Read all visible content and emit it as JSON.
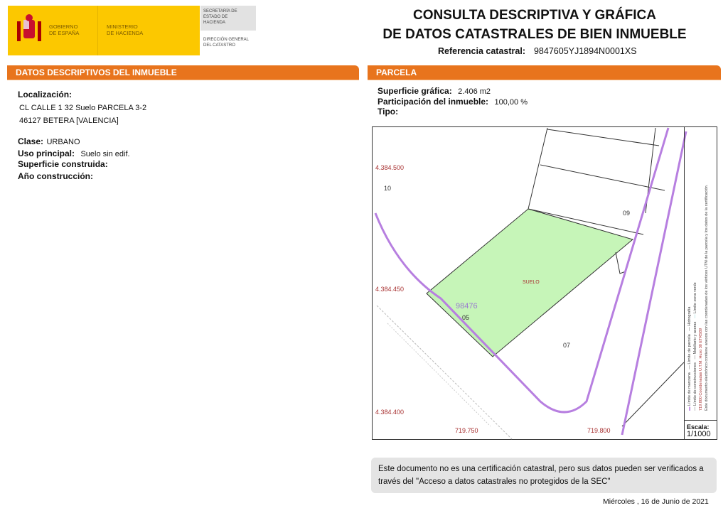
{
  "header": {
    "gov_line1": "GOBIERNO",
    "gov_line2": "DE ESPAÑA",
    "ministry_line1": "MINISTERIO",
    "ministry_line2": "DE HACIENDA",
    "secretaria": "SECRETARÍA DE ESTADO DE HACIENDA",
    "direccion": "DIRECCIÓN GENERAL DEL CATASTRO",
    "title_line1": "CONSULTA DESCRIPTIVA Y GRÁFICA",
    "title_line2": "DE DATOS CATASTRALES DE BIEN INMUEBLE",
    "ref_label": "Referencia catastral:",
    "ref_value": "9847605YJ1894N0001XS"
  },
  "left": {
    "section_title": "DATOS DESCRIPTIVOS DEL INMUEBLE",
    "localizacion_label": "Localización:",
    "address_line1": "CL CALLE 1 32 Suelo PARCELA 3-2",
    "address_line2": "46127 BETERA [VALENCIA]",
    "clase_label": "Clase:",
    "clase_value": "URBANO",
    "uso_label": "Uso principal:",
    "uso_value": "Suelo sin edif.",
    "superficie_label": "Superficie construida:",
    "anio_label": "Año construcción:"
  },
  "right": {
    "section_title": "PARCELA",
    "superficie_label": "Superficie gráfica:",
    "superficie_value": "2.406 m2",
    "participacion_label": "Participación del inmueble:",
    "participacion_value": "100,00 %",
    "tipo_label": "Tipo:"
  },
  "map": {
    "y_ticks": [
      "4.384.500",
      "4.384.450",
      "4.384.400"
    ],
    "x_ticks": [
      "719.750",
      "719.800"
    ],
    "labels": {
      "p10": "10",
      "p09": "09",
      "suelo": "SUELO",
      "manzana": "98476",
      "p05": "05",
      "p07": "07"
    },
    "colors": {
      "parcel_fill": "#c6f5b8",
      "manzana": "#b77fe0",
      "coords": "#a83232"
    },
    "legend": {
      "manzana": "Límite de manzana",
      "construcciones": "Límite de construcciones",
      "parcela": "Límite de parcela",
      "mobiliario": "Mobiliario y aceras",
      "hidrografia": "Hidrografía",
      "zona_verde": "Límite zona verde",
      "coords_note": "719.800 Coordenadas U.T.M. Huso 30 ETRS89",
      "doc_note": "Este documento electrónico contiene anexos con las coordenadas de los vértices UTM de la parcela y los datos de la certificación.",
      "scale_label": "Escala:",
      "scale_value": "1/1000"
    }
  },
  "footer": {
    "note": "Este documento no es una certificación catastral, pero sus datos pueden ser verificados a través del \"Acceso a datos catastrales no protegidos de la SEC\"",
    "date": "Miércoles , 16 de Junio de 2021"
  }
}
